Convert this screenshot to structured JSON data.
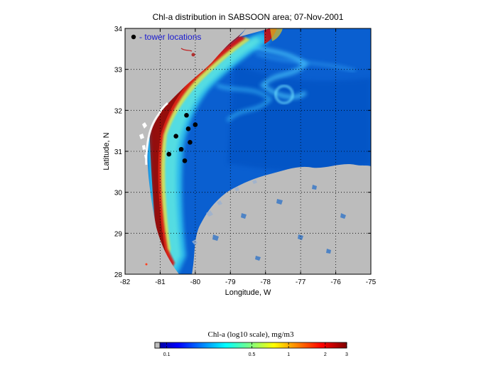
{
  "title": "Chl-a distribution in SABSOON area; 07-Nov-2001",
  "legend_label": "- tower locations",
  "xlabel": "Longitude, W",
  "ylabel": "Latitude, N",
  "x_ticks": [
    "-82",
    "-81",
    "-80",
    "-79",
    "-78",
    "-77",
    "-76",
    "-75"
  ],
  "y_ticks": [
    "28",
    "29",
    "30",
    "31",
    "32",
    "33",
    "34"
  ],
  "xlim": [
    -82,
    -75
  ],
  "ylim": [
    28,
    34
  ],
  "towers": [
    {
      "lon": -80.25,
      "lat": 31.88
    },
    {
      "lon": -80.0,
      "lat": 31.65
    },
    {
      "lon": -80.2,
      "lat": 31.55
    },
    {
      "lon": -80.55,
      "lat": 31.37
    },
    {
      "lon": -80.15,
      "lat": 31.22
    },
    {
      "lon": -80.4,
      "lat": 31.05
    },
    {
      "lon": -80.75,
      "lat": 30.93
    },
    {
      "lon": -80.3,
      "lat": 30.77
    }
  ],
  "colorbar": {
    "title": "Chl-a (log10 scale), mg/m3",
    "ticks": [
      "0.1",
      "0.5",
      "1",
      "2",
      "3"
    ]
  },
  "colors": {
    "land": "#bdbdbd",
    "ocean": "#0a5fd0",
    "tower": "#000000",
    "legend_text": "#1a1ad0"
  }
}
